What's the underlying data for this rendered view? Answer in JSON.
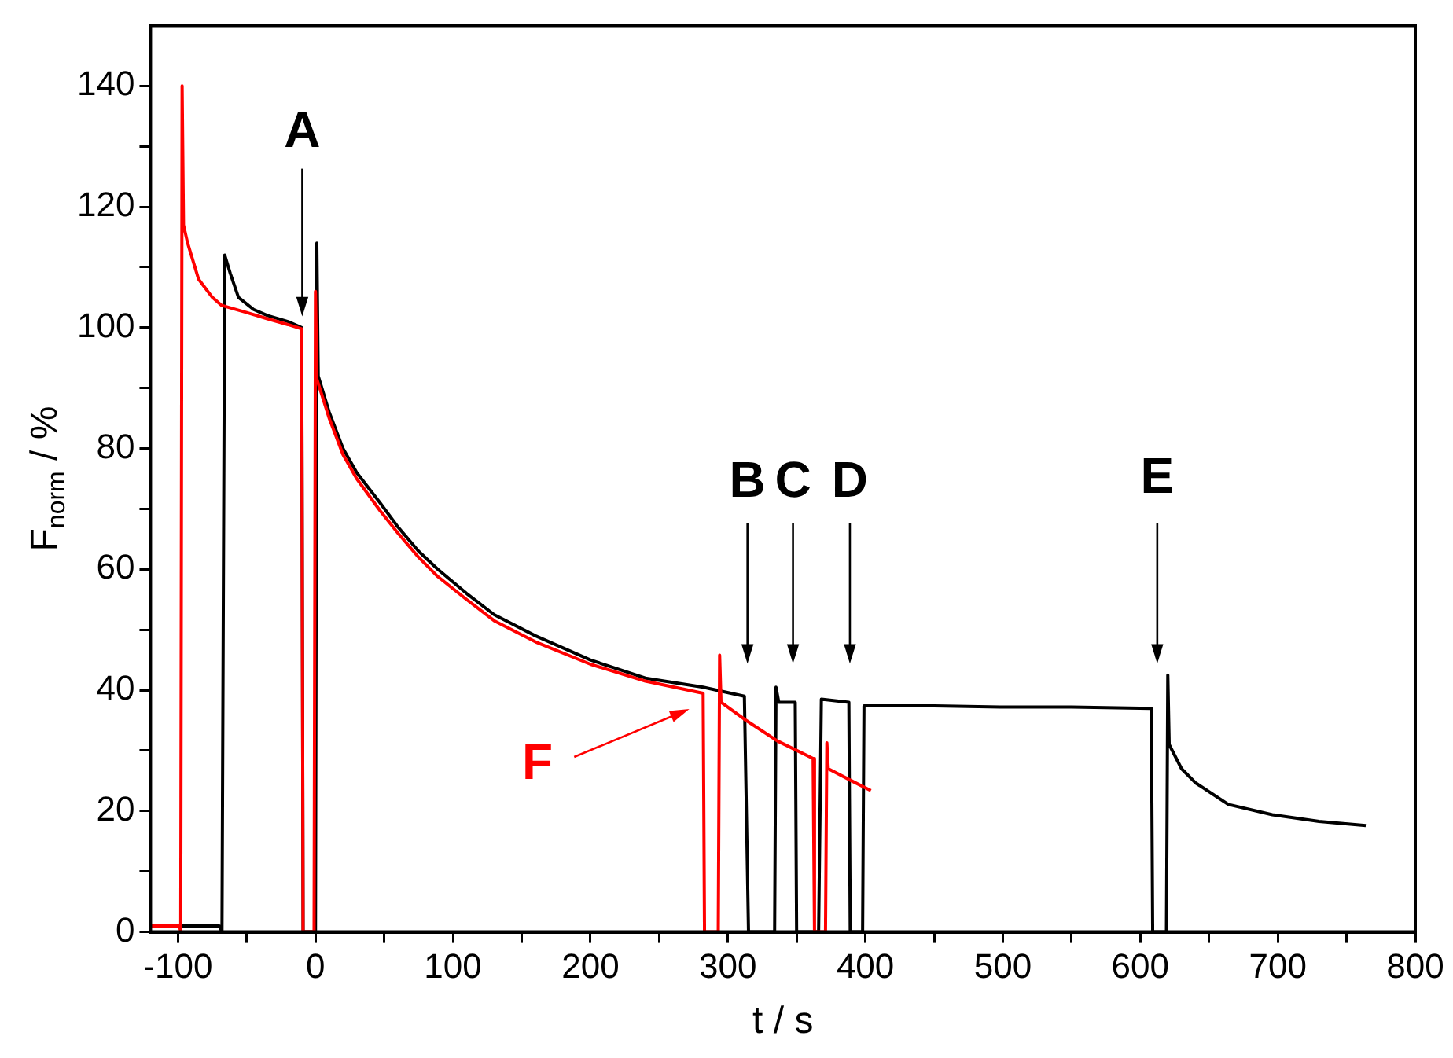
{
  "chart_data": {
    "type": "line",
    "xlabel": "t / s",
    "ylabel": "F$_{norm}$ / %",
    "xlim": [
      -120,
      800
    ],
    "ylim": [
      0,
      150
    ],
    "xticks": [
      -100,
      {
        "value": -50,
        "label": null
      },
      0,
      {
        "value": 50,
        "label": null
      },
      100,
      {
        "value": 150,
        "label": null
      },
      200,
      {
        "value": 250,
        "label": null
      },
      300,
      {
        "value": 350,
        "label": null
      },
      400,
      {
        "value": 450,
        "label": null
      },
      500,
      {
        "value": 550,
        "label": null
      },
      600,
      {
        "value": 650,
        "label": null
      },
      700,
      {
        "value": 750,
        "label": null
      },
      800
    ],
    "yticks": [
      0,
      {
        "value": 10,
        "label": null
      },
      20,
      {
        "value": 30,
        "label": null
      },
      40,
      {
        "value": 50,
        "label": null
      },
      60,
      {
        "value": 70,
        "label": null
      },
      80,
      {
        "value": 90,
        "label": null
      },
      100,
      {
        "value": 110,
        "label": null
      },
      120,
      {
        "value": 130,
        "label": null
      },
      140
    ],
    "grid": false,
    "legend": false,
    "marker": "none",
    "line_style": "solid",
    "series": [
      {
        "color": "#000000",
        "x": [
          -110,
          -70,
          -68,
          -66,
          -62,
          -56,
          -45,
          -35,
          -20,
          -10,
          -9,
          0,
          1,
          2,
          10,
          20,
          30,
          47,
          60,
          75,
          89,
          110,
          130,
          160,
          200,
          240,
          282,
          312,
          315,
          334,
          335,
          337,
          349,
          350,
          366,
          368,
          388,
          389,
          398,
          399,
          450,
          500,
          550,
          608,
          609,
          619,
          620,
          621,
          630,
          640,
          664,
          696,
          730,
          764
        ],
        "values": [
          1,
          1,
          0,
          112,
          109,
          105,
          103,
          102,
          101,
          100,
          0,
          0,
          114,
          92,
          86,
          80,
          76,
          71,
          67,
          63,
          60,
          56,
          52.5,
          49,
          45,
          42,
          40.5,
          39,
          0,
          0,
          40.5,
          38,
          38,
          0,
          0,
          38.5,
          38,
          0,
          0,
          37.4,
          37.4,
          37.2,
          37.2,
          37,
          0,
          0,
          42.5,
          31,
          27,
          24.7,
          21.1,
          19.4,
          18.3,
          17.6
        ]
      },
      {
        "color": "#ff0000",
        "x": [
          -120,
          -99,
          -98,
          -97,
          -96,
          -93,
          -85,
          -75,
          -68.5,
          -50,
          -35.5,
          -20,
          -10,
          -9,
          -1,
          0,
          1,
          10,
          20,
          30,
          47,
          60,
          75,
          89,
          110,
          130,
          160,
          200,
          240,
          282,
          283,
          293,
          294,
          295,
          312,
          336,
          362,
          363,
          371,
          372,
          373,
          390,
          404
        ],
        "values": [
          1,
          1,
          0,
          140,
          117,
          114,
          108,
          105,
          103.7,
          102.5,
          101.5,
          100.5,
          99.8,
          0,
          0,
          106,
          91.5,
          85,
          79,
          75,
          69.7,
          66,
          62,
          58.8,
          55,
          51.5,
          48,
          44.3,
          41.5,
          39.5,
          0,
          0,
          45.8,
          38,
          35.2,
          31.6,
          28.7,
          0,
          0,
          31.3,
          27,
          25,
          23.4
        ]
      }
    ],
    "annotations": [
      "A",
      "B",
      "C",
      "D",
      "E",
      "F"
    ]
  }
}
